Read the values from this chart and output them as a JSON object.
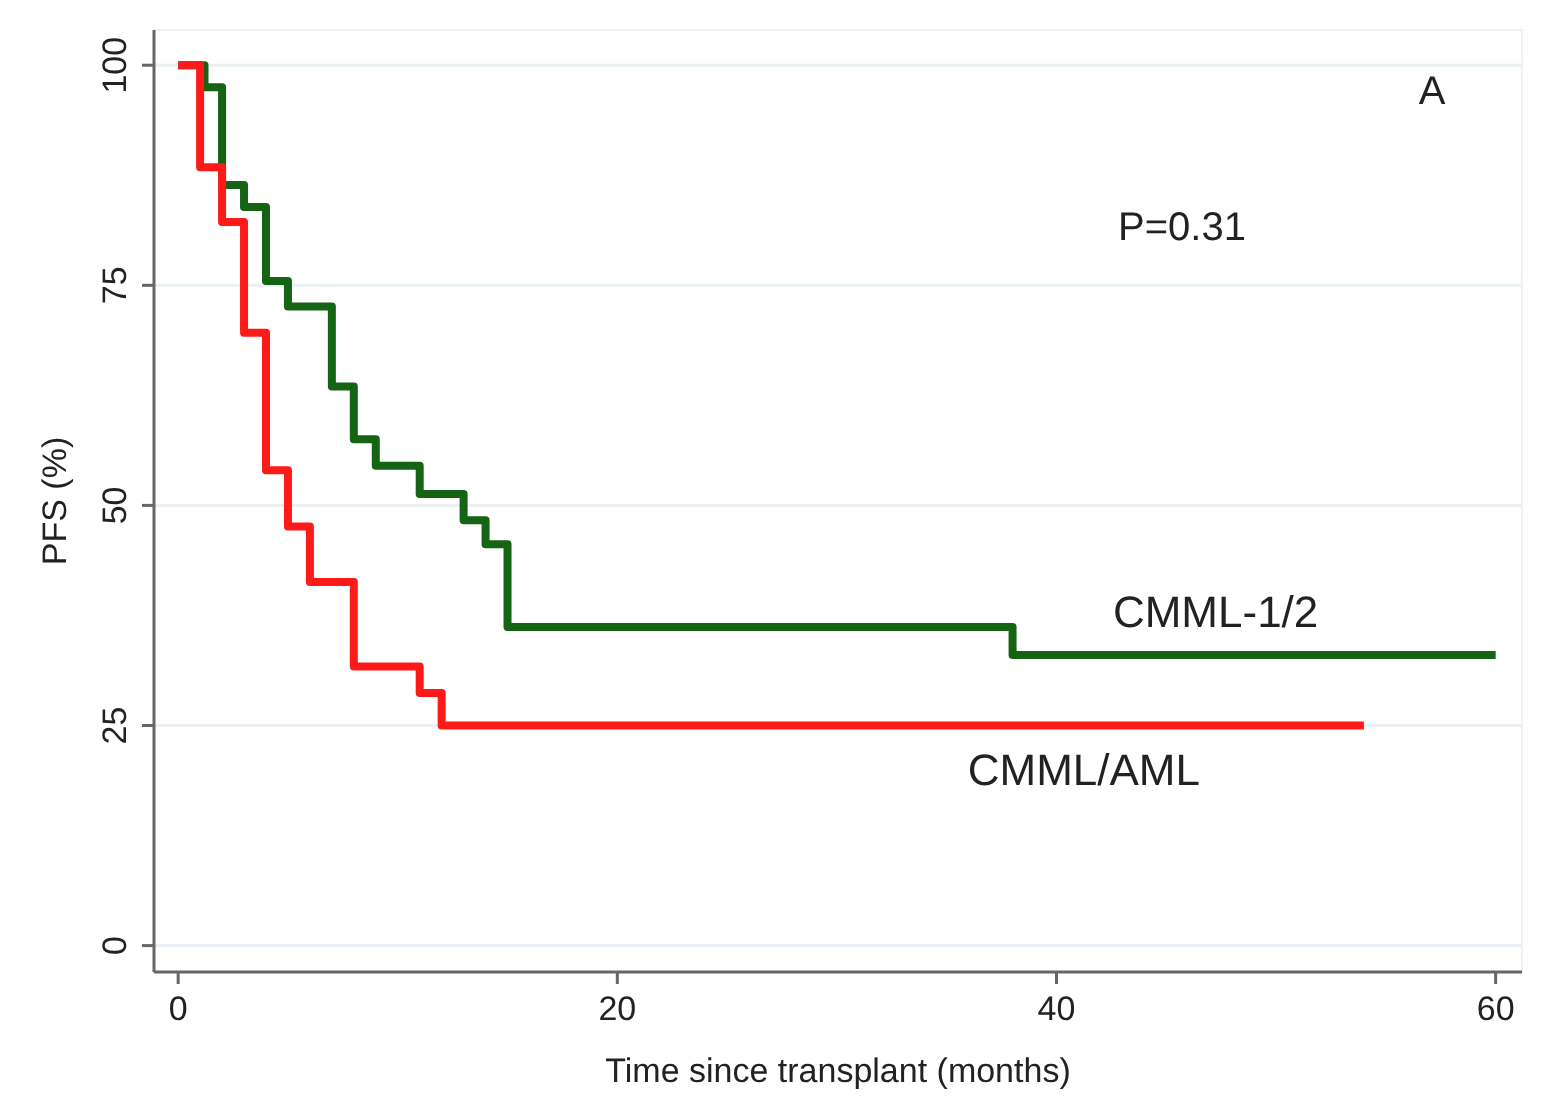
{
  "chart_data": {
    "type": "step",
    "xlabel": "Time since transplant (months)",
    "ylabel": "PFS (%)",
    "annotations": [
      "A",
      "P=0.31"
    ],
    "xlim": [
      -1.1,
      61.2
    ],
    "ylim": [
      -3,
      104
    ],
    "xticks": [
      0,
      20,
      40,
      60
    ],
    "yticks": [
      0,
      25,
      50,
      75,
      100
    ],
    "grid": "y",
    "series": [
      {
        "name": "CMML-1/2",
        "color": "#146414",
        "x": [
          0,
          1.2,
          2,
          3,
          4,
          5,
          7,
          8,
          9,
          11,
          13,
          14,
          15,
          38,
          60
        ],
        "values": [
          100,
          97.5,
          86.4,
          83.9,
          75.5,
          72.6,
          63.5,
          57.5,
          54.5,
          51.3,
          48.3,
          45.6,
          36.2,
          33,
          33
        ]
      },
      {
        "name": "CMML/AML",
        "color": "#ff1a1a",
        "x": [
          0,
          1,
          2,
          3,
          4,
          5,
          6,
          8,
          11,
          12,
          54
        ],
        "values": [
          100,
          88.4,
          82.2,
          69.6,
          54,
          47.6,
          41.3,
          31.7,
          28.7,
          25,
          25
        ]
      }
    ]
  }
}
